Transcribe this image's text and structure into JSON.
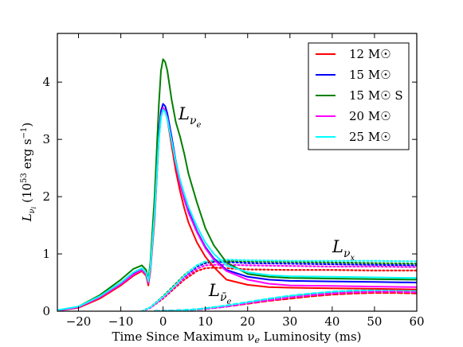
{
  "chart_data": {
    "type": "line",
    "xlabel": "Time Since Maximum ν_e Luminosity (ms)",
    "ylabel": "L_ν_i (10^53 erg s^-1)",
    "xlim": [
      -25,
      60
    ],
    "ylim": [
      0,
      4.85
    ],
    "xticks": [
      -20,
      -10,
      0,
      10,
      20,
      30,
      40,
      50,
      60
    ],
    "yticks": [
      0,
      1,
      2,
      3,
      4
    ],
    "grid": false,
    "legend_position": "top-right",
    "annotations": [
      {
        "text": "L_ν_e",
        "x": 3,
        "y": 3.4
      },
      {
        "text": "L_ν_x",
        "x": 35.5,
        "y": 1.05
      },
      {
        "text": "L_ν̄_e",
        "x": 9,
        "y": 0.25
      }
    ],
    "series": [
      {
        "name": "12 M☉",
        "color": "#ff0000",
        "nu_e": {
          "x": [
            -25,
            -20,
            -15,
            -10,
            -7,
            -5,
            -4,
            -3.5,
            -3,
            -2,
            -1,
            -0.5,
            0,
            0.5,
            1,
            2,
            3,
            4,
            5,
            6,
            8,
            10,
            12,
            15,
            20,
            25,
            30,
            40,
            50,
            60
          ],
          "y": [
            0.01,
            0.06,
            0.22,
            0.45,
            0.62,
            0.7,
            0.62,
            0.45,
            0.7,
            1.6,
            3.0,
            3.45,
            3.55,
            3.5,
            3.35,
            2.9,
            2.45,
            2.1,
            1.8,
            1.55,
            1.2,
            0.95,
            0.77,
            0.55,
            0.46,
            0.42,
            0.41,
            0.4,
            0.39,
            0.38
          ]
        },
        "nu_x": {
          "x": [
            -5,
            -3,
            0,
            3,
            5,
            8,
            10,
            12,
            15,
            20,
            30,
            40,
            50,
            60
          ],
          "y": [
            0.0,
            0.06,
            0.22,
            0.42,
            0.55,
            0.7,
            0.75,
            0.76,
            0.75,
            0.73,
            0.72,
            0.72,
            0.71,
            0.71
          ]
        },
        "nu_e_bar": {
          "x": [
            -2,
            0,
            2,
            5,
            8,
            10,
            15,
            20,
            25,
            30,
            35,
            40,
            45,
            50,
            55,
            60
          ],
          "y": [
            0.0,
            0.005,
            0.01,
            0.02,
            0.03,
            0.04,
            0.08,
            0.13,
            0.18,
            0.22,
            0.26,
            0.29,
            0.31,
            0.32,
            0.32,
            0.31
          ]
        }
      },
      {
        "name": "15 M☉",
        "color": "#0000ff",
        "nu_e": {
          "x": [
            -25,
            -20,
            -15,
            -10,
            -7,
            -5,
            -4,
            -3.5,
            -3,
            -2,
            -1,
            -0.5,
            0,
            0.5,
            1,
            2,
            3,
            4,
            5,
            6,
            8,
            10,
            12,
            15,
            20,
            25,
            30,
            40,
            50,
            60
          ],
          "y": [
            0.01,
            0.07,
            0.25,
            0.48,
            0.66,
            0.73,
            0.65,
            0.5,
            0.75,
            1.7,
            3.1,
            3.5,
            3.62,
            3.58,
            3.45,
            3.05,
            2.62,
            2.28,
            2.0,
            1.75,
            1.4,
            1.12,
            0.92,
            0.72,
            0.6,
            0.55,
            0.53,
            0.52,
            0.51,
            0.5
          ]
        },
        "nu_x": {
          "x": [
            -5,
            -3,
            0,
            3,
            5,
            8,
            10,
            12,
            15,
            20,
            30,
            40,
            50,
            60
          ],
          "y": [
            0.0,
            0.06,
            0.24,
            0.45,
            0.6,
            0.78,
            0.84,
            0.86,
            0.86,
            0.84,
            0.83,
            0.82,
            0.81,
            0.8
          ]
        },
        "nu_e_bar": {
          "x": [
            -2,
            0,
            2,
            5,
            8,
            10,
            15,
            20,
            25,
            30,
            35,
            40,
            45,
            50,
            55,
            60
          ],
          "y": [
            0.0,
            0.005,
            0.01,
            0.02,
            0.03,
            0.05,
            0.09,
            0.15,
            0.21,
            0.26,
            0.3,
            0.33,
            0.35,
            0.36,
            0.36,
            0.35
          ]
        }
      },
      {
        "name": "15 M☉ S",
        "color": "#008000",
        "nu_e": {
          "x": [
            -25,
            -20,
            -15,
            -10,
            -7,
            -5,
            -4,
            -3.5,
            -3,
            -2,
            -1,
            -0.5,
            0,
            0.5,
            1,
            2,
            3,
            4,
            5,
            6,
            8,
            10,
            12,
            15,
            20,
            25,
            30,
            40,
            50,
            60
          ],
          "y": [
            0.01,
            0.08,
            0.28,
            0.55,
            0.74,
            0.8,
            0.72,
            0.55,
            0.85,
            2.0,
            3.6,
            4.2,
            4.4,
            4.35,
            4.2,
            3.7,
            3.3,
            3.05,
            2.75,
            2.4,
            1.9,
            1.45,
            1.15,
            0.85,
            0.65,
            0.6,
            0.58,
            0.57,
            0.56,
            0.55
          ]
        },
        "nu_x": {
          "x": [
            -5,
            -3,
            0,
            3,
            5,
            8,
            10,
            12,
            15,
            20,
            30,
            40,
            50,
            60
          ],
          "y": [
            0.0,
            0.07,
            0.26,
            0.48,
            0.63,
            0.8,
            0.86,
            0.88,
            0.88,
            0.87,
            0.86,
            0.85,
            0.84,
            0.83
          ]
        },
        "nu_e_bar": {
          "x": [
            -2,
            0,
            2,
            5,
            8,
            10,
            15,
            20,
            25,
            30,
            35,
            40,
            45,
            50,
            55,
            60
          ],
          "y": [
            0.0,
            0.005,
            0.01,
            0.02,
            0.03,
            0.05,
            0.09,
            0.15,
            0.21,
            0.26,
            0.3,
            0.33,
            0.35,
            0.35,
            0.35,
            0.34
          ]
        }
      },
      {
        "name": "20 M☉",
        "color": "#ff00ff",
        "nu_e": {
          "x": [
            -25,
            -20,
            -15,
            -10,
            -7,
            -5,
            -4,
            -3.5,
            -3,
            -2,
            -1,
            -0.5,
            0,
            0.5,
            1,
            2,
            3,
            4,
            5,
            6,
            8,
            10,
            12,
            15,
            20,
            25,
            30,
            40,
            50,
            60
          ],
          "y": [
            0.01,
            0.07,
            0.24,
            0.47,
            0.64,
            0.72,
            0.64,
            0.49,
            0.74,
            1.65,
            3.0,
            3.4,
            3.55,
            3.5,
            3.38,
            2.98,
            2.57,
            2.22,
            1.95,
            1.72,
            1.38,
            1.1,
            0.9,
            0.7,
            0.55,
            0.48,
            0.45,
            0.44,
            0.43,
            0.42
          ]
        },
        "nu_x": {
          "x": [
            -5,
            -3,
            0,
            3,
            5,
            8,
            10,
            12,
            15,
            20,
            30,
            40,
            50,
            60
          ],
          "y": [
            0.0,
            0.06,
            0.23,
            0.44,
            0.58,
            0.74,
            0.8,
            0.81,
            0.81,
            0.8,
            0.79,
            0.78,
            0.78,
            0.77
          ]
        },
        "nu_e_bar": {
          "x": [
            -2,
            0,
            2,
            5,
            8,
            10,
            15,
            20,
            25,
            30,
            35,
            40,
            45,
            50,
            55,
            60
          ],
          "y": [
            0.0,
            0.005,
            0.01,
            0.02,
            0.03,
            0.04,
            0.08,
            0.14,
            0.19,
            0.24,
            0.28,
            0.31,
            0.33,
            0.34,
            0.34,
            0.33
          ]
        }
      },
      {
        "name": "25 M☉",
        "color": "#00ffff",
        "nu_e": {
          "x": [
            -25,
            -20,
            -15,
            -10,
            -7,
            -5,
            -4,
            -3.5,
            -3,
            -2,
            -1,
            -0.5,
            0,
            0.5,
            1,
            2,
            3,
            4,
            5,
            6,
            8,
            10,
            12,
            15,
            20,
            25,
            30,
            40,
            50,
            60
          ],
          "y": [
            0.02,
            0.08,
            0.26,
            0.5,
            0.68,
            0.75,
            0.67,
            0.52,
            0.77,
            1.7,
            3.0,
            3.38,
            3.52,
            3.48,
            3.35,
            2.98,
            2.6,
            2.3,
            2.05,
            1.82,
            1.48,
            1.2,
            1.0,
            0.8,
            0.68,
            0.63,
            0.61,
            0.6,
            0.59,
            0.58
          ]
        },
        "nu_x": {
          "x": [
            -5,
            -3,
            0,
            3,
            5,
            8,
            10,
            12,
            15,
            20,
            30,
            40,
            50,
            60
          ],
          "y": [
            0.0,
            0.07,
            0.25,
            0.46,
            0.62,
            0.8,
            0.87,
            0.89,
            0.9,
            0.89,
            0.88,
            0.88,
            0.88,
            0.87
          ]
        },
        "nu_e_bar": {
          "x": [
            -2,
            0,
            2,
            5,
            8,
            10,
            15,
            20,
            25,
            30,
            35,
            40,
            45,
            50,
            55,
            60
          ],
          "y": [
            0.0,
            0.005,
            0.01,
            0.02,
            0.035,
            0.05,
            0.1,
            0.16,
            0.22,
            0.27,
            0.31,
            0.34,
            0.36,
            0.37,
            0.37,
            0.36
          ]
        }
      }
    ]
  }
}
